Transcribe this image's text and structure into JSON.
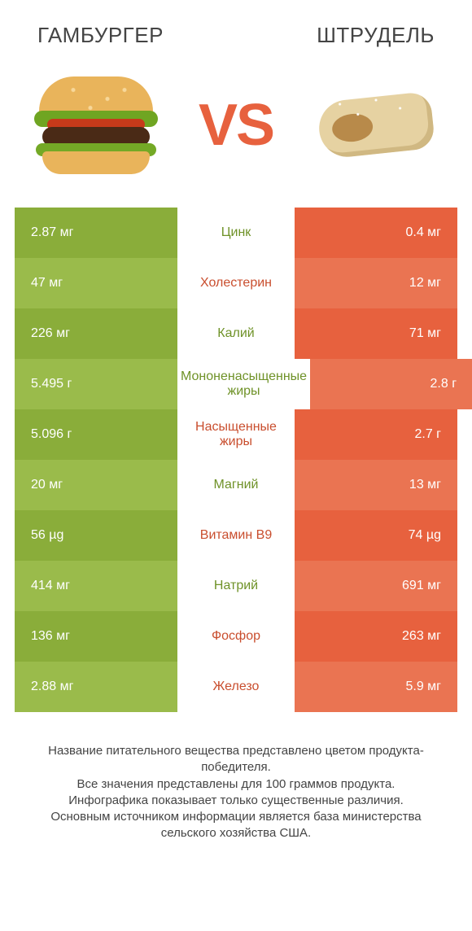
{
  "colors": {
    "left": "#8aad3a",
    "left_alt": "#9abb4b",
    "right": "#e7613e",
    "right_alt": "#ea7452",
    "mid_left": "#6f9228",
    "mid_right": "#c94e2e",
    "bg": "#ffffff"
  },
  "left_title": "ГАМБУРГЕР",
  "right_title": "ШТРУДЕЛЬ",
  "vs": "VS",
  "rows": [
    {
      "nutrient": "Цинк",
      "left": "2.87 мг",
      "right": "0.4 мг",
      "winner": "left"
    },
    {
      "nutrient": "Холестерин",
      "left": "47 мг",
      "right": "12 мг",
      "winner": "right"
    },
    {
      "nutrient": "Калий",
      "left": "226 мг",
      "right": "71 мг",
      "winner": "left"
    },
    {
      "nutrient": "Мононенасыщенные жиры",
      "left": "5.495 г",
      "right": "2.8 г",
      "winner": "left"
    },
    {
      "nutrient": "Насыщенные жиры",
      "left": "5.096 г",
      "right": "2.7 г",
      "winner": "right"
    },
    {
      "nutrient": "Магний",
      "left": "20 мг",
      "right": "13 мг",
      "winner": "left"
    },
    {
      "nutrient": "Витамин B9",
      "left": "56 µg",
      "right": "74 µg",
      "winner": "right"
    },
    {
      "nutrient": "Натрий",
      "left": "414 мг",
      "right": "691 мг",
      "winner": "left"
    },
    {
      "nutrient": "Фосфор",
      "left": "136 мг",
      "right": "263 мг",
      "winner": "right"
    },
    {
      "nutrient": "Железо",
      "left": "2.88 мг",
      "right": "5.9 мг",
      "winner": "right"
    }
  ],
  "footer_lines": [
    "Название питательного вещества представлено цветом продукта-победителя.",
    "Все значения представлены для 100 граммов продукта.",
    "Инфографика показывает только существенные различия.",
    "Основным источником информации является база министерства сельского хозяйства США."
  ]
}
